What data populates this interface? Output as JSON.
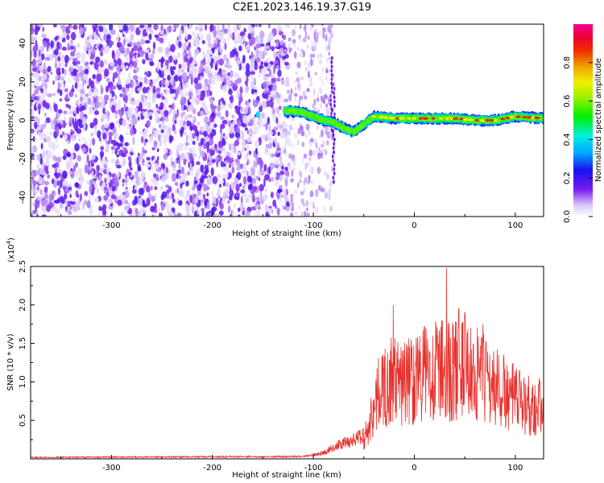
{
  "title": "C2E1.2023.146.19.37.G19",
  "chart_data": [
    {
      "type": "heatmap",
      "xlabel": "Height of straight line (km)",
      "ylabel": "Frequency (Hz)",
      "xlim": [
        -380,
        128
      ],
      "ylim": [
        -50,
        50
      ],
      "xticks": [
        "-300",
        "-200",
        "-100",
        "0",
        "100"
      ],
      "yticks": [
        "40",
        "20",
        "0",
        "-20",
        "-40"
      ],
      "colorbar": {
        "label": "Normalized spectral amplitude",
        "ticks": [
          "0.0",
          "0.2",
          "0.4",
          "0.6",
          "0.8"
        ],
        "range": [
          0,
          1
        ],
        "colormap": "white-purple-blue-cyan-green-yellow-orange-red-magenta"
      },
      "noise_region": {
        "x": [
          -380,
          -125
        ],
        "y": [
          -50,
          50
        ],
        "amplitude": "0.1-0.3"
      },
      "sparse_noise_region": {
        "x": [
          -125,
          -80
        ],
        "y": [
          -50,
          50
        ]
      },
      "signal_track": [
        {
          "x": -155,
          "y": 3
        },
        {
          "x": -125,
          "y": 5
        },
        {
          "x": -110,
          "y": 4
        },
        {
          "x": -100,
          "y": 2
        },
        {
          "x": -90,
          "y": 0
        },
        {
          "x": -80,
          "y": -1
        },
        {
          "x": -70,
          "y": -4
        },
        {
          "x": -60,
          "y": -6
        },
        {
          "x": -50,
          "y": -2
        },
        {
          "x": -40,
          "y": 2
        },
        {
          "x": -20,
          "y": 1
        },
        {
          "x": 0,
          "y": 1
        },
        {
          "x": 20,
          "y": 1
        },
        {
          "x": 40,
          "y": 1
        },
        {
          "x": 60,
          "y": 0
        },
        {
          "x": 80,
          "y": 0
        },
        {
          "x": 100,
          "y": 2
        },
        {
          "x": 128,
          "y": 1
        }
      ]
    },
    {
      "type": "line",
      "xlabel": "Height of straight line (km)",
      "ylabel": "SNR (10 * v/v)",
      "yscale_label": "(x10^4)",
      "xlim": [
        -380,
        128
      ],
      "ylim": [
        0,
        2.5
      ],
      "xticks": [
        "-300",
        "-200",
        "-100",
        "0",
        "100"
      ],
      "yticks": [
        "0.5",
        "1.0",
        "1.5",
        "2.0",
        "2.5"
      ],
      "series": [
        {
          "color": "#e8302c",
          "envelope_x": [
            -380,
            -110,
            -100,
            -90,
            -80,
            -70,
            -60,
            -50,
            -45,
            -40,
            -35,
            -30,
            -25,
            -20,
            -15,
            -10,
            -5,
            0,
            10,
            20,
            30,
            40,
            50,
            60,
            70,
            80,
            90,
            100,
            110,
            120,
            128
          ],
          "envelope_y": [
            0.02,
            0.03,
            0.05,
            0.08,
            0.15,
            0.2,
            0.25,
            0.3,
            0.5,
            0.8,
            1.0,
            1.1,
            1.15,
            1.2,
            1.15,
            1.15,
            1.2,
            1.25,
            1.3,
            1.35,
            1.35,
            1.35,
            1.35,
            1.3,
            1.2,
            1.1,
            1.0,
            0.9,
            0.85,
            0.8,
            0.8
          ],
          "peaks": [
            {
              "x": -21,
              "y": 2.0
            },
            {
              "x": 32,
              "y": 2.48
            },
            {
              "x": 27,
              "y": 1.8
            },
            {
              "x": 44,
              "y": 1.95
            },
            {
              "x": 50,
              "y": 1.9
            },
            {
              "x": 68,
              "y": 1.75
            }
          ]
        }
      ]
    }
  ]
}
